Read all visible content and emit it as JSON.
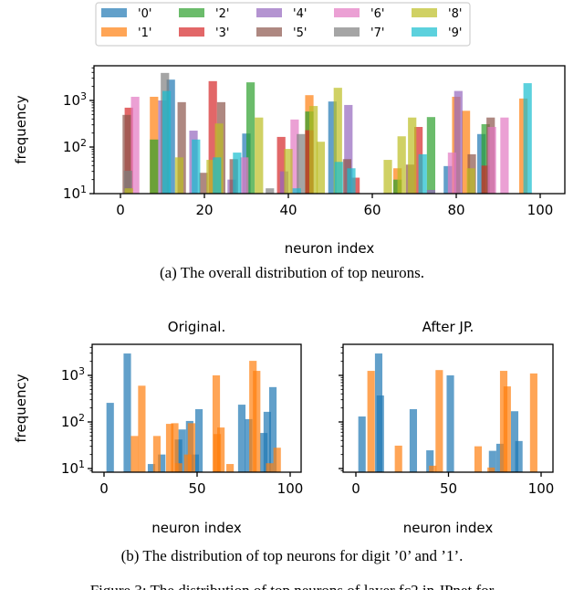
{
  "legend": {
    "placement": "top",
    "entries": [
      "'0'",
      "'1'",
      "'2'",
      "'3'",
      "'4'",
      "'5'",
      "'6'",
      "'7'",
      "'8'",
      "'9'"
    ],
    "colors": [
      "#1f77b4",
      "#ff7f0e",
      "#2ca02c",
      "#d62728",
      "#9467bd",
      "#8c564b",
      "#e377c2",
      "#7f7f7f",
      "#bcbd22",
      "#17becf"
    ]
  },
  "captions": {
    "a": "(a)  The overall distribution of top neurons.",
    "b": "(b)  The distribution of top neurons for digit ’0’ and ’1’.",
    "figure": "Figure 3: The distribution of top neurons of layer fc2 in JPnet for"
  },
  "chart_data": [
    {
      "type": "bar",
      "title": "",
      "xlabel": "neuron index",
      "ylabel": "frequency",
      "yscale": "log",
      "xlim": [
        -6,
        106
      ],
      "ylim": [
        10,
        5600
      ],
      "x_ticks": [
        "0",
        "20",
        "40",
        "60",
        "80",
        "100"
      ],
      "x_tick_values": [
        0,
        20,
        40,
        60,
        80,
        100
      ],
      "y_ticks": [
        {
          "base": "10",
          "exp": "1"
        },
        {
          "base": "10",
          "exp": "2"
        },
        {
          "base": "10",
          "exp": "3"
        }
      ],
      "y_tick_values": [
        10,
        100,
        1000
      ],
      "grid": false,
      "series": [
        {
          "name": "'0'",
          "x": [
            12,
            30,
            50.5,
            78,
            86
          ],
          "values": [
            2800,
            195,
            950,
            39,
            190
          ]
        },
        {
          "name": "'1'",
          "x": [
            8,
            45,
            66,
            80,
            82.3,
            96
          ],
          "values": [
            1200,
            1300,
            35,
            1200,
            600,
            1100
          ]
        },
        {
          "name": "'2'",
          "x": [
            8,
            31,
            45,
            66,
            74,
            87
          ],
          "values": [
            145,
            2450,
            580,
            20,
            440,
            310
          ]
        },
        {
          "name": "'3'",
          "x": [
            2,
            22,
            38.3,
            45,
            56,
            71,
            87
          ],
          "values": [
            700,
            2600,
            165,
            230,
            22,
            270,
            40
          ]
        },
        {
          "name": "'4'",
          "x": [
            10,
            17.4,
            26.5,
            39,
            54.3,
            74,
            80.5
          ],
          "values": [
            1000,
            225,
            20,
            30,
            800,
            12,
            1600
          ]
        },
        {
          "name": "'5'",
          "x": [
            1.5,
            14.6,
            19.8,
            24,
            27,
            54,
            69,
            83.7,
            88.2
          ],
          "values": [
            490,
            920,
            28,
            920,
            55,
            55,
            42,
            70,
            430
          ]
        },
        {
          "name": "'6'",
          "x": [
            3.5,
            29.5,
            41.5,
            79,
            88.5,
            91.5
          ],
          "values": [
            1200,
            60,
            390,
            76,
            270,
            430
          ]
        },
        {
          "name": "'7'",
          "x": [
            1.8,
            10.6,
            35.6,
            43
          ],
          "values": [
            31,
            3900,
            13,
            190
          ]
        },
        {
          "name": "'8'",
          "x": [
            2,
            14,
            21.5,
            23.5,
            33,
            40,
            46,
            47.7,
            51.8,
            63.7,
            67,
            69.5,
            83.5
          ],
          "values": [
            13,
            60,
            53,
            320,
            430,
            91,
            760,
            130,
            1870,
            53,
            170,
            430,
            35
          ]
        },
        {
          "name": "'9'",
          "x": [
            11,
            18,
            23,
            27.8,
            42,
            52,
            55,
            72,
            97
          ],
          "values": [
            1600,
            145,
            60,
            76,
            13,
            48,
            35,
            70,
            2350
          ]
        }
      ]
    },
    {
      "type": "bar",
      "title": "Original.",
      "xlabel": "neuron index",
      "ylabel": "frequency",
      "yscale": "log",
      "xlim": [
        -6,
        106
      ],
      "ylim": [
        8.5,
        5400
      ],
      "x_ticks": [
        "0",
        "50",
        "100"
      ],
      "x_tick_values": [
        0,
        50,
        100
      ],
      "y_ticks": [
        {
          "base": "10",
          "exp": "1"
        },
        {
          "base": "10",
          "exp": "2"
        },
        {
          "base": "10",
          "exp": "3"
        }
      ],
      "y_tick_values": [
        10,
        100,
        1000
      ],
      "grid": false,
      "series": [
        {
          "name": "'0'",
          "x": [
            3.3,
            12.5,
            25.5,
            31,
            40,
            42,
            46,
            49,
            51,
            74,
            77.7,
            85.8,
            87.7,
            90.7
          ],
          "values": [
            257,
            2950,
            12.5,
            20,
            42,
            69,
            105,
            20,
            188,
            235,
            115,
            58,
            165,
            560
          ]
        },
        {
          "name": "'1'",
          "x": [
            16.4,
            20.3,
            28.4,
            35.3,
            38,
            40,
            45,
            47,
            60.3,
            60.8,
            62.8,
            67.7,
            80,
            82,
            89,
            93
          ],
          "values": [
            50,
            600,
            50,
            91,
            94,
            13,
            20,
            94,
            1000,
            55,
            76,
            12.5,
            2050,
            1250,
            13,
            28
          ]
        }
      ]
    },
    {
      "type": "bar",
      "title": "After JP.",
      "xlabel": "neuron index",
      "ylabel": "",
      "yscale": "log",
      "xlim": [
        -7,
        106
      ],
      "ylim": [
        8.5,
        5400
      ],
      "x_ticks": [
        "0",
        "50",
        "100"
      ],
      "x_tick_values": [
        0,
        50,
        100
      ],
      "y_ticks": [],
      "y_tick_values": [
        10,
        100,
        1000
      ],
      "grid": false,
      "series": [
        {
          "name": "'0'",
          "x": [
            3.3,
            12.3,
            13.2,
            31,
            40,
            51,
            73.8,
            77.8,
            85.7,
            88
          ],
          "values": [
            131,
            2950,
            370,
            188,
            24.6,
            1000,
            24,
            34,
            170,
            39
          ]
        },
        {
          "name": "'1'",
          "x": [
            8.2,
            23,
            41.5,
            45,
            66,
            73,
            79.8,
            81.7,
            96
          ],
          "values": [
            1250,
            31,
            11.5,
            1300,
            30,
            10.5,
            1250,
            580,
            1100
          ]
        }
      ]
    }
  ]
}
